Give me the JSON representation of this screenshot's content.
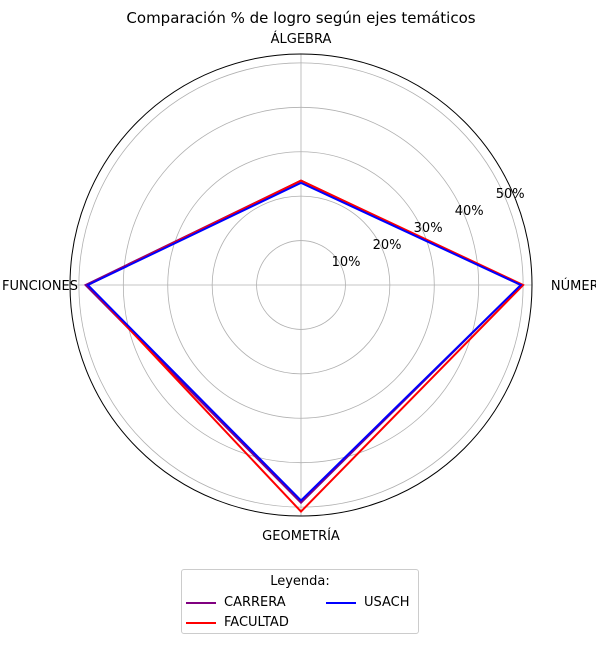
{
  "chart_data": {
    "type": "radar",
    "title": "Comparación % de logro según ejes temáticos",
    "axes": [
      "NÚMEROS",
      "ÁLGEBRA",
      "FUNCIONES",
      "GEOMETRÍA"
    ],
    "radial_ticks": [
      10,
      20,
      30,
      40,
      50
    ],
    "radial_tick_labels": [
      "10%",
      "20%",
      "30%",
      "40%",
      "50%"
    ],
    "rlim": [
      0,
      52
    ],
    "grid": true,
    "legend_title": "Leyenda:",
    "legend_position": "bottom",
    "series": [
      {
        "name": "CARRERA",
        "color": "#800080",
        "values": [
          49.5,
          23.5,
          48.5,
          49.0
        ]
      },
      {
        "name": "FACULTAD",
        "color": "#ff0000",
        "values": [
          50.0,
          23.5,
          48.0,
          51.0
        ]
      },
      {
        "name": "USACH",
        "color": "#0000ff",
        "values": [
          49.5,
          23.0,
          48.0,
          48.5
        ]
      }
    ]
  }
}
